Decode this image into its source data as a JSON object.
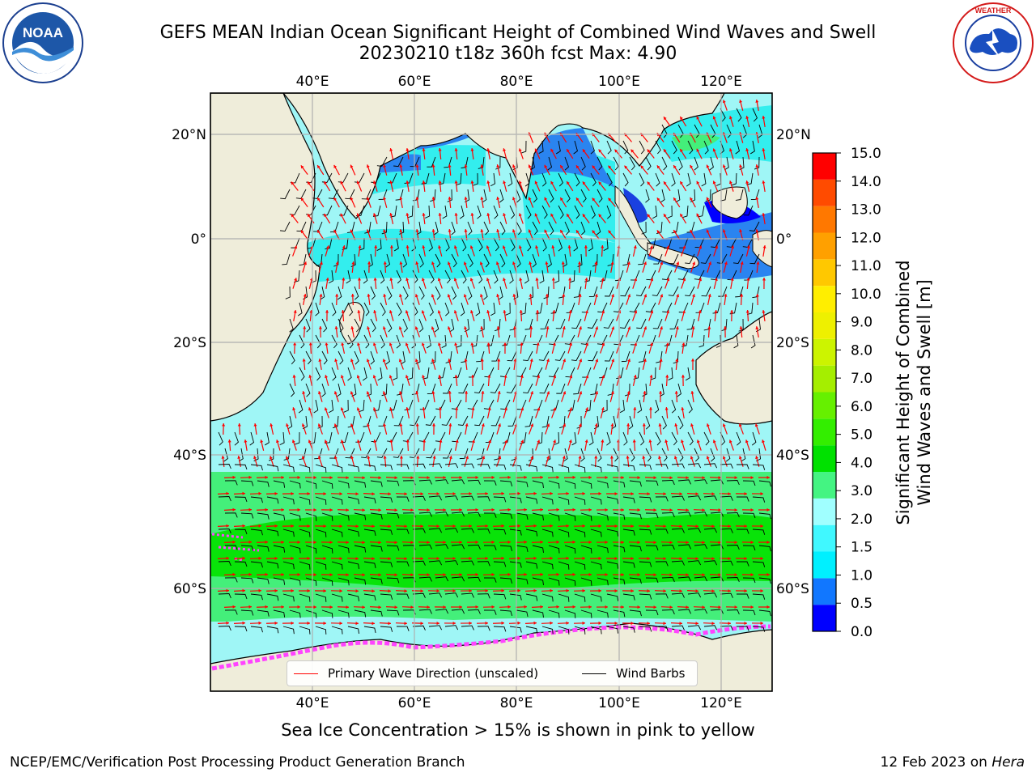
{
  "header": {
    "title_line1": "GEFS MEAN Indian Ocean Significant Height of Combined Wind Waves and Swell",
    "title_line2": "20230210 t18z 360h fcst   Max: 4.90"
  },
  "logos": {
    "noaa": {
      "text": "NOAA",
      "ring_text": "NATIONAL OCEANIC AND ATMOSPHERIC ADMINISTRATION · U.S. DEPARTMENT OF COMMERCE"
    },
    "nws": {
      "ring_text": "NATIONAL WEATHER SERVICE"
    }
  },
  "map": {
    "top_lon_labels": [
      "40°E",
      "60°E",
      "80°E",
      "100°E",
      "120°E"
    ],
    "bottom_lon_labels": [
      "40°E",
      "60°E",
      "80°E",
      "100°E",
      "120°E"
    ],
    "left_lat_labels": [
      "20°N",
      "0°",
      "20°S",
      "40°S",
      "60°S"
    ],
    "right_lat_labels": [
      "20°N",
      "0°",
      "20°S",
      "40°S",
      "60°S"
    ],
    "lon_range": [
      20,
      130
    ],
    "lat_range": [
      -72,
      28
    ],
    "colors": {
      "land": "#efedda",
      "ocean_low": "#2a84f0",
      "ocean_mid": "#33eeee",
      "ocean_main": "#9ff6f6",
      "ocean_high": "#44ef7a",
      "ocean_peak": "#09e309",
      "sea_ice": "#ff44ff",
      "wave_arrow": "#ff0000",
      "wind_barb": "#000000"
    }
  },
  "legend": {
    "wave_label": "Primary Wave Direction (unscaled)",
    "wind_label": "Wind Barbs"
  },
  "colorbar": {
    "label_line1": "Significant Height of Combined",
    "label_line2": "Wind Waves and Swell [m]",
    "ticks": [
      "0.0",
      "0.5",
      "1.0",
      "1.5",
      "2.0",
      "3.0",
      "4.0",
      "5.0",
      "6.0",
      "7.0",
      "8.0",
      "9.0",
      "10.0",
      "11.0",
      "12.0",
      "13.0",
      "14.0",
      "15.0"
    ],
    "colors": [
      "#0000ff",
      "#1177ff",
      "#00f0ff",
      "#40f8ff",
      "#a0ffff",
      "#44f482",
      "#00e100",
      "#33ee00",
      "#66f000",
      "#a5ee00",
      "#ccf400",
      "#eef000",
      "#ffee00",
      "#ffc800",
      "#ffa000",
      "#ff7800",
      "#ff4b00",
      "#ff0000"
    ]
  },
  "footer": {
    "note": "Sea Ice Concentration > 15% is shown in pink to yellow",
    "left": "NCEP/EMC/Verification Post Processing Product Generation Branch",
    "right_date": "12 Feb 2023 on ",
    "right_host": "Hera"
  }
}
